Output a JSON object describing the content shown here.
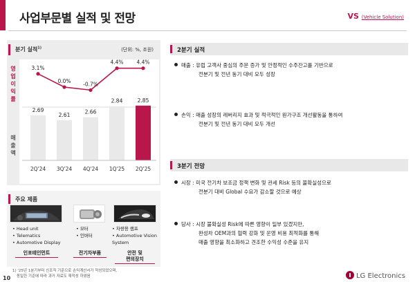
{
  "header": {
    "title": "사업부문별 실적 및 전망",
    "tag": "VS",
    "tag_sub": "(Vehicle Solution)"
  },
  "left_panel": {
    "title": "분기 실적",
    "title_sup": "1)",
    "unit": "(단위: %, 조원)",
    "op_margin_label": [
      "영",
      "업",
      "이",
      "익",
      "률"
    ],
    "sales_label": [
      "매",
      "출",
      "액"
    ]
  },
  "chart_data": {
    "type": "bar",
    "categories": [
      "2Q'24",
      "3Q'24",
      "4Q'24",
      "1Q'25",
      "2Q'25"
    ],
    "series": [
      {
        "name": "영업이익률",
        "type": "line",
        "values": [
          3.1,
          0.0,
          -0.7,
          4.4,
          4.4
        ],
        "labels": [
          "3.1%",
          "0.0%",
          "-0.7%",
          "4.4%",
          "4.4%"
        ]
      },
      {
        "name": "매출액",
        "type": "bar",
        "values": [
          2.69,
          2.61,
          2.66,
          2.84,
          2.85
        ],
        "labels": [
          "2.69",
          "2.61",
          "2.66",
          "2.84",
          "2.85"
        ]
      }
    ],
    "highlight_index": 4,
    "colors": {
      "accent": "#b9164c",
      "bar": "#e9e9e9"
    }
  },
  "products": {
    "title": "주요 제품",
    "groups": [
      {
        "items": [
          "Head unit",
          "Telematics",
          "Automotive Display"
        ],
        "category": "인포테인먼트",
        "icon": "car-display-icon"
      },
      {
        "items": [
          "모터",
          "인버터"
        ],
        "category": "전기차부품",
        "icon": "motor-icon"
      },
      {
        "items": [
          "차량용 램프",
          "Automotive Vision System"
        ],
        "category_lines": [
          "안전 및",
          "편의장치"
        ],
        "icon": "car-lamp-icon"
      }
    ]
  },
  "footnote": [
    "1) '25년 1분기부터 신조직 기준으로 손익계산서가 작성되었으며,",
    "동일한 기준에 따라 과거 자료도 재작성 하였음"
  ],
  "page_number": "10",
  "logo_text": "LG Electronics",
  "sections": [
    {
      "title": "2분기 실적",
      "bullets": [
        {
          "lines": [
            "매출 : 유럽 고객사 중심의 주문 증가 및 안정적인 수주잔고를 기반으로",
            "전분기 및 전년 동기 대비 모두 성장"
          ]
        },
        {
          "lines": [
            "손익 : 매출 성장의 레버리지 효과 및 적극적인 원가구조 개선활동을 통하여",
            "전분기 및 전년 동기 대비 모두 개선"
          ]
        }
      ]
    },
    {
      "title": "3분기 전망",
      "bullets": [
        {
          "lines": [
            "시장 : 미국 전기차 보조금 정책 변화 및 관세 Risk 등의 불확실성으로",
            "전분기 대비 Global 수요가 감소할 것으로 예상"
          ]
        },
        {
          "lines": [
            "당사 : 시장 불확실성 Risk에 따른 영향이 일부 있겠지만,",
            "완성차 OEM과의 협력 강화 및 운영 비용 최적화를 통해",
            "매출 영향을 최소화하고 견조한 수익성 수준을 유지"
          ]
        }
      ]
    }
  ]
}
